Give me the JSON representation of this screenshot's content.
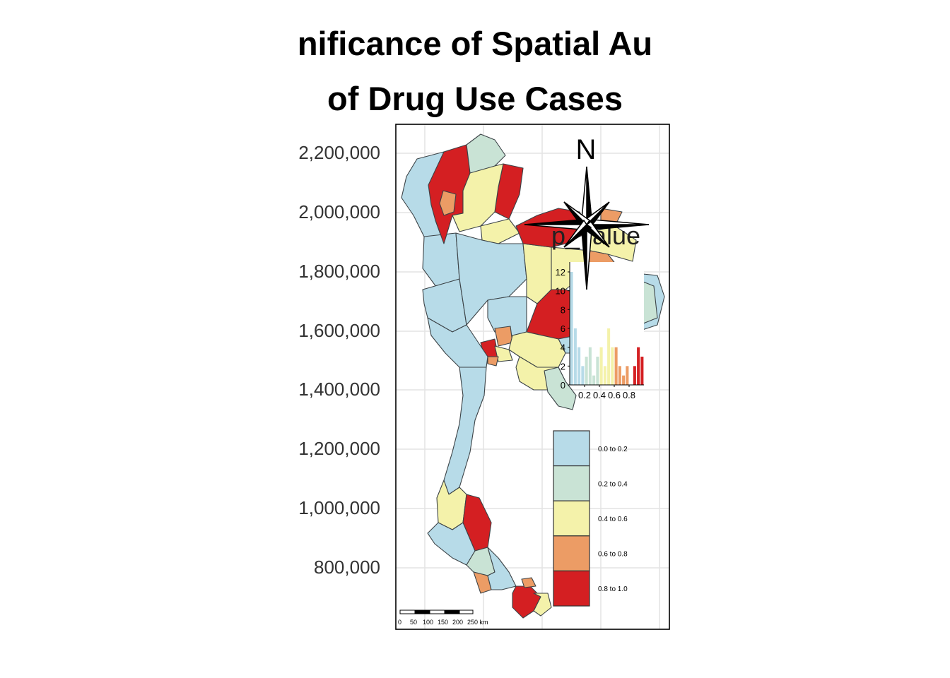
{
  "title": {
    "line1": "nificance of Spatial Au",
    "line2": "of Drug Use Cases"
  },
  "y_axis": {
    "ticks": [
      "2,200,000",
      "2,000,000",
      "1,800,000",
      "1,600,000",
      "1,400,000",
      "1,200,000",
      "1,000,000",
      "800,000"
    ]
  },
  "compass": {
    "label": "N",
    "icon": "compass-rose-icon"
  },
  "legend": {
    "title": "p_value",
    "classes": [
      {
        "label": "0.0 to 0.2",
        "color": "#b7dbe8"
      },
      {
        "label": "0.2 to 0.4",
        "color": "#c9e3d5"
      },
      {
        "label": "0.4 to 0.6",
        "color": "#f4f2aa"
      },
      {
        "label": "0.6 to 0.8",
        "color": "#ec9c65"
      },
      {
        "label": "0.8 to 1.0",
        "color": "#d41f22"
      }
    ]
  },
  "histogram": {
    "y_ticks": [
      "0",
      "2",
      "4",
      "6",
      "8",
      "10",
      "12"
    ],
    "x_ticks": [
      "0.2",
      "0.4",
      "0.6",
      "0.8"
    ],
    "ylim": [
      0,
      12
    ],
    "bins": [
      {
        "x": 0.025,
        "count": 12
      },
      {
        "x": 0.075,
        "count": 6
      },
      {
        "x": 0.125,
        "count": 4
      },
      {
        "x": 0.175,
        "count": 2
      },
      {
        "x": 0.225,
        "count": 3
      },
      {
        "x": 0.275,
        "count": 4
      },
      {
        "x": 0.325,
        "count": 1
      },
      {
        "x": 0.375,
        "count": 3
      },
      {
        "x": 0.425,
        "count": 4
      },
      {
        "x": 0.475,
        "count": 2
      },
      {
        "x": 0.525,
        "count": 6
      },
      {
        "x": 0.575,
        "count": 4
      },
      {
        "x": 0.625,
        "count": 4
      },
      {
        "x": 0.675,
        "count": 2
      },
      {
        "x": 0.725,
        "count": 1
      },
      {
        "x": 0.775,
        "count": 2
      },
      {
        "x": 0.825,
        "count": 0
      },
      {
        "x": 0.875,
        "count": 2
      },
      {
        "x": 0.925,
        "count": 4
      },
      {
        "x": 0.975,
        "count": 3
      }
    ]
  },
  "scale_bar": {
    "labels": [
      "0",
      "50",
      "100",
      "150",
      "200",
      "250 km"
    ]
  }
}
